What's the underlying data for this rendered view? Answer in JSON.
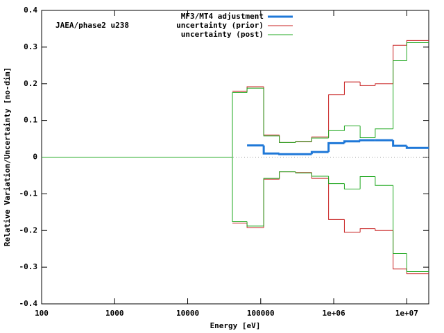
{
  "chart_data": {
    "type": "step",
    "annotation": "JAEA/phase2 u238",
    "x_label": "Energy [eV]",
    "y_label": "Relative Variation/Uncertainty [no-dim]",
    "x": [
      100,
      41000,
      65000,
      110000,
      180000,
      300000,
      500000,
      850000,
      1400000,
      2300000,
      3700000,
      6500000,
      10000000
    ],
    "series": [
      {
        "name": "MF3/MT4 adjustment",
        "color": "#1f78d8",
        "width": 3,
        "values": [
          null,
          null,
          0.032,
          0.01,
          0.008,
          0.008,
          0.014,
          0.038,
          0.043,
          0.046,
          0.046,
          0.031,
          0.025
        ]
      },
      {
        "name": "uncertainty (prior)",
        "color": "#c82020",
        "width": 1,
        "values": [
          null,
          0.18,
          0.192,
          0.06,
          0.04,
          0.042,
          0.055,
          0.17,
          0.205,
          0.195,
          0.2,
          0.305,
          0.318
        ]
      },
      {
        "name": "uncertainty (post)",
        "color": "#20a820",
        "width": 1,
        "values": [
          0,
          0.176,
          0.188,
          0.058,
          0.04,
          0.043,
          0.052,
          0.072,
          0.085,
          0.053,
          0.077,
          0.263,
          0.312
        ]
      },
      {
        "color": "#c82020",
        "width": 1,
        "values": [
          null,
          -0.18,
          -0.192,
          -0.06,
          -0.04,
          -0.042,
          -0.058,
          -0.17,
          -0.205,
          -0.195,
          -0.2,
          -0.305,
          -0.318
        ]
      },
      {
        "color": "#20a820",
        "width": 1,
        "values": [
          0,
          -0.176,
          -0.188,
          -0.058,
          -0.04,
          -0.043,
          -0.052,
          -0.072,
          -0.087,
          -0.053,
          -0.077,
          -0.263,
          -0.312
        ]
      }
    ],
    "xlog": true,
    "xlim": [
      100,
      20000000
    ],
    "xticks": [
      100,
      1000,
      10000,
      100000,
      {
        "value": 1000000,
        "label": "1e+06"
      },
      {
        "value": 10000000,
        "label": "1e+07"
      }
    ],
    "ylim": [
      -0.4,
      0.4
    ],
    "yticks": [
      -0.4,
      -0.3,
      -0.2,
      -0.1,
      0,
      0.1,
      0.2,
      0.3,
      0.4
    ],
    "zero_line": true,
    "legend": "top"
  }
}
